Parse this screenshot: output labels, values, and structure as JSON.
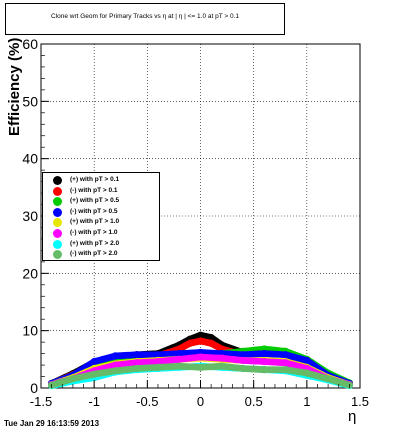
{
  "title": "Clone wrt Geom for Primary Tracks vs    η at |    η | <= 1.0 at pT > 0.1",
  "timestamp": "Tue Jan 29 16:13:59 2013",
  "chart_data": {
    "type": "scatter",
    "title": "Clone wrt Geom for Primary Tracks vs    η at |    η | <= 1.0 at pT > 0.1",
    "xlabel": "η",
    "ylabel": "Efficiency (%)",
    "xlim": [
      -1.5,
      1.5
    ],
    "ylim": [
      0,
      60
    ],
    "grid": true,
    "legend_position": "left-middle",
    "x_ticks": [
      "-1.5",
      "-1",
      "-0.5",
      "0",
      "0.5",
      "1",
      "1.5"
    ],
    "y_ticks": [
      "0",
      "10",
      "20",
      "30",
      "40",
      "50",
      "60"
    ],
    "series": [
      {
        "name": "(+) with pT > 0.1",
        "color": "#000000",
        "x": [
          -1.4,
          -1.2,
          -1.0,
          -0.8,
          -0.6,
          -0.4,
          -0.2,
          -0.1,
          0.0,
          0.1,
          0.2,
          0.4,
          0.6,
          0.8,
          1.0,
          1.2,
          1.4
        ],
        "y": [
          0.8,
          2.5,
          4.5,
          5.5,
          5.8,
          6.0,
          7.5,
          8.5,
          9.2,
          8.8,
          7.5,
          6.2,
          6.5,
          6.0,
          4.8,
          2.5,
          0.8
        ]
      },
      {
        "name": "(-) with pT > 0.1",
        "color": "#ff0000",
        "x": [
          -1.4,
          -1.2,
          -1.0,
          -0.8,
          -0.6,
          -0.4,
          -0.2,
          -0.1,
          0.0,
          0.1,
          0.2,
          0.4,
          0.6,
          0.8,
          1.0,
          1.2,
          1.4
        ],
        "y": [
          0.8,
          2.3,
          4.2,
          5.2,
          5.5,
          5.6,
          6.8,
          7.8,
          8.2,
          7.8,
          6.8,
          5.8,
          6.2,
          5.8,
          4.5,
          2.3,
          0.8
        ]
      },
      {
        "name": "(+) with pT > 0.5",
        "color": "#00cc00",
        "x": [
          -1.4,
          -1.2,
          -1.0,
          -0.8,
          -0.6,
          -0.4,
          -0.2,
          0.0,
          0.2,
          0.4,
          0.6,
          0.8,
          1.0,
          1.2,
          1.4
        ],
        "y": [
          0.8,
          2.2,
          4.5,
          5.2,
          5.4,
          5.6,
          5.8,
          6.0,
          6.0,
          6.4,
          6.8,
          6.4,
          5.0,
          2.6,
          0.9
        ]
      },
      {
        "name": "(-) with pT > 0.5",
        "color": "#0000ff",
        "x": [
          -1.4,
          -1.2,
          -1.0,
          -0.8,
          -0.6,
          -0.4,
          -0.2,
          0.0,
          0.2,
          0.4,
          0.6,
          0.8,
          1.0,
          1.2,
          1.4
        ],
        "y": [
          0.8,
          2.2,
          4.6,
          5.6,
          5.8,
          5.8,
          6.0,
          6.2,
          6.0,
          5.8,
          6.0,
          5.8,
          4.8,
          2.2,
          0.8
        ]
      },
      {
        "name": "(+) with pT > 1.0",
        "color": "#e6e600",
        "x": [
          -1.4,
          -1.2,
          -1.0,
          -0.8,
          -0.6,
          -0.4,
          -0.2,
          0.0,
          0.2,
          0.4,
          0.6,
          0.8,
          1.0,
          1.2,
          1.4
        ],
        "y": [
          0.6,
          1.8,
          3.4,
          4.2,
          4.6,
          4.8,
          5.0,
          5.2,
          5.0,
          4.8,
          4.8,
          4.6,
          3.6,
          1.8,
          0.6
        ]
      },
      {
        "name": "(-) with pT > 1.0",
        "color": "#ff00ff",
        "x": [
          -1.4,
          -1.2,
          -1.0,
          -0.8,
          -0.6,
          -0.4,
          -0.2,
          0.0,
          0.2,
          0.4,
          0.6,
          0.8,
          1.0,
          1.2,
          1.4
        ],
        "y": [
          0.6,
          1.6,
          3.0,
          4.0,
          4.4,
          4.6,
          5.0,
          5.4,
          5.2,
          4.8,
          4.6,
          4.4,
          3.4,
          1.6,
          0.6
        ]
      },
      {
        "name": "(+) with pT > 2.0",
        "color": "#00ffff",
        "x": [
          -1.4,
          -1.2,
          -1.0,
          -0.8,
          -0.6,
          -0.4,
          -0.2,
          0.0,
          0.2,
          0.4,
          0.6,
          0.8,
          1.0,
          1.2,
          1.4
        ],
        "y": [
          0.4,
          1.2,
          1.8,
          2.8,
          3.2,
          3.4,
          3.6,
          3.8,
          3.6,
          3.4,
          3.2,
          3.0,
          2.2,
          1.4,
          0.4
        ]
      },
      {
        "name": "(-) with pT > 2.0",
        "color": "#66bb66",
        "x": [
          -1.4,
          -1.2,
          -1.0,
          -0.8,
          -0.6,
          -0.4,
          -0.2,
          0.0,
          0.2,
          0.4,
          0.6,
          0.8,
          1.0,
          1.2,
          1.4
        ],
        "y": [
          0.5,
          1.6,
          2.4,
          3.0,
          3.4,
          3.6,
          3.8,
          3.6,
          3.8,
          3.4,
          3.2,
          3.2,
          2.6,
          1.6,
          0.5
        ]
      }
    ]
  }
}
